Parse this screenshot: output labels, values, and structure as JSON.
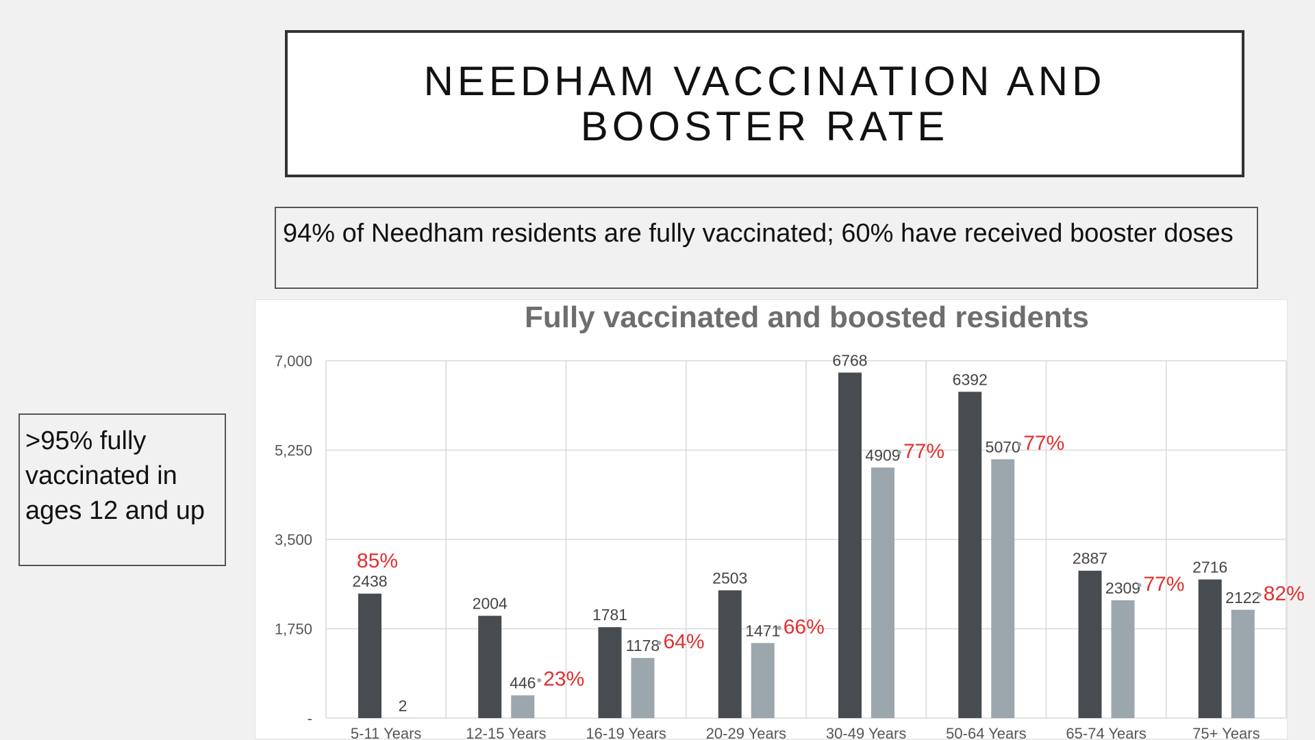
{
  "header": {
    "title_line1": "NEEDHAM VACCINATION AND",
    "title_line2": "BOOSTER RATE"
  },
  "summary": {
    "text": "94% of Needham residents are fully vaccinated; 60% have received booster doses"
  },
  "side_note": {
    "text": ">95% fully vaccinated in ages 12 and up"
  },
  "chart_data": {
    "type": "bar",
    "title": "Fully vaccinated and boosted residents",
    "categories": [
      "5-11 Years",
      "12-15 Years",
      "16-19 Years",
      "20-29 Years",
      "30-49 Years",
      "50-64 Years",
      "65-74 Years",
      "75+ Years"
    ],
    "series": [
      {
        "values": [
          2438,
          2004,
          1781,
          2503,
          6768,
          6392,
          2887,
          2716
        ],
        "color": "#474c50"
      },
      {
        "values": [
          2,
          446,
          1178,
          1471,
          4909,
          5070,
          2309,
          2122
        ],
        "color": "#9ba7ad"
      }
    ],
    "percent_labels": [
      "85%",
      "23%",
      "64%",
      "66%",
      "77%",
      "77%",
      "77%",
      "82%"
    ],
    "value_labels": [
      [
        "2438",
        "2004",
        "1781",
        "2503",
        "6768",
        "6392",
        "2887",
        "2716"
      ],
      [
        "2",
        "446",
        "1178",
        "1471",
        "4909",
        "5070",
        "2309",
        "2122"
      ]
    ],
    "y_ticks": [
      0,
      1750,
      3500,
      5250,
      7000
    ],
    "y_tick_labels": [
      "-",
      "1,750",
      "3,500",
      "5,250",
      "7,000"
    ],
    "ylim": [
      0,
      7000
    ],
    "grid": true,
    "percent_color": "#e0302f",
    "xlabel": "",
    "ylabel": ""
  }
}
